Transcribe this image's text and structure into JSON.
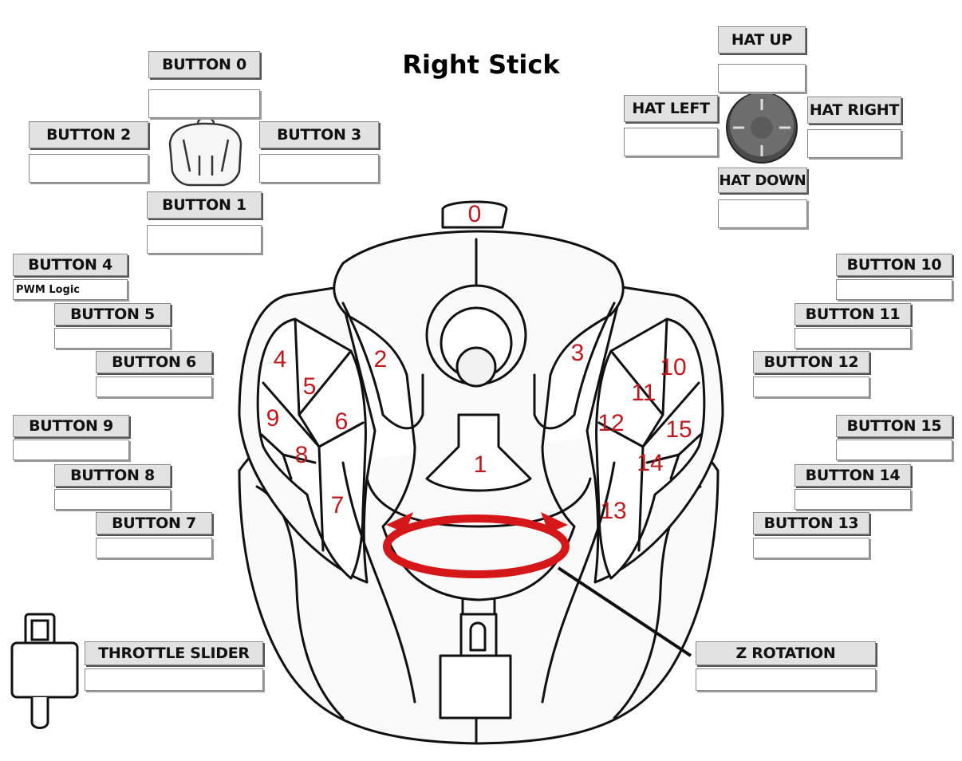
{
  "title": "Right Stick",
  "accent_color": "#c0181b",
  "controls": {
    "button_0": {
      "label": "BUTTON 0",
      "value": ""
    },
    "button_1": {
      "label": "BUTTON 1",
      "value": ""
    },
    "button_2": {
      "label": "BUTTON  2",
      "value": ""
    },
    "button_3": {
      "label": "BUTTON  3",
      "value": ""
    },
    "button_4": {
      "label": "BUTTON  4",
      "value": "PWM Logic"
    },
    "button_5": {
      "label": "BUTTON  5",
      "value": ""
    },
    "button_6": {
      "label": "BUTTON  6",
      "value": ""
    },
    "button_7": {
      "label": "BUTTON  7",
      "value": ""
    },
    "button_8": {
      "label": "BUTTON  8",
      "value": ""
    },
    "button_9": {
      "label": "BUTTON  9",
      "value": ""
    },
    "button_10": {
      "label": "BUTTON 10",
      "value": ""
    },
    "button_11": {
      "label": "BUTTON 11",
      "value": ""
    },
    "button_12": {
      "label": "BUTTON 12",
      "value": ""
    },
    "button_13": {
      "label": "BUTTON 13",
      "value": ""
    },
    "button_14": {
      "label": "BUTTON 14",
      "value": ""
    },
    "button_15": {
      "label": "BUTTON 15",
      "value": ""
    },
    "hat_up": {
      "label": "HAT UP",
      "value": ""
    },
    "hat_down": {
      "label": "HAT DOWN",
      "value": ""
    },
    "hat_left": {
      "label": "HAT LEFT",
      "value": ""
    },
    "hat_right": {
      "label": "HAT RIGHT",
      "value": ""
    },
    "throttle_slider": {
      "label": "THROTTLE SLIDER",
      "value": ""
    },
    "z_rotation": {
      "label": "Z ROTATION",
      "value": ""
    }
  },
  "stick_numbers": [
    "0",
    "1",
    "2",
    "3",
    "4",
    "5",
    "6",
    "7",
    "8",
    "9",
    "10",
    "11",
    "12",
    "13",
    "14",
    "15"
  ]
}
